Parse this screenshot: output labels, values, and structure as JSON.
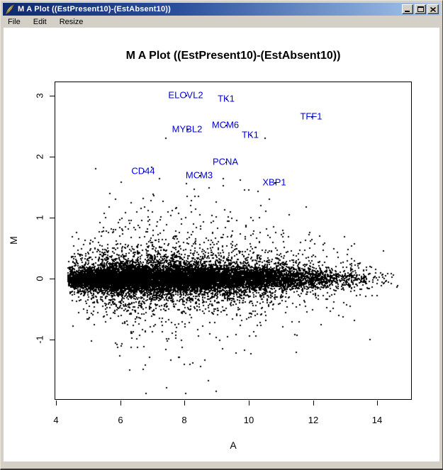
{
  "window": {
    "title": "M A Plot ((EstPresent10)-(EstAbsent10))",
    "icon": "feather-icon",
    "controls": [
      {
        "name": "minimize-button",
        "icon": "minimize-icon"
      },
      {
        "name": "maximize-button",
        "icon": "maximize-icon"
      },
      {
        "name": "close-button",
        "icon": "close-icon"
      }
    ]
  },
  "menu": {
    "items": [
      {
        "label": "File"
      },
      {
        "label": "Edit"
      },
      {
        "label": "Resize"
      }
    ]
  },
  "chart_data": {
    "type": "scatter",
    "title": "M A Plot ((EstPresent10)-(EstAbsent10))",
    "xlabel": "A",
    "ylabel": "M",
    "xlim": [
      3.95,
      15.08
    ],
    "ylim": [
      -1.99,
      3.23
    ],
    "x_ticks": [
      4,
      6,
      8,
      10,
      12,
      14
    ],
    "y_ticks": [
      -1,
      0,
      1,
      2,
      3
    ],
    "grid": false,
    "point_color": "#000000",
    "gene_label_color": "#0000dd",
    "labeled_points": [
      {
        "label": "ELOVL2",
        "a": 8.04,
        "m": 3.01
      },
      {
        "label": "TK1",
        "a": 9.3,
        "m": 2.95
      },
      {
        "label": "TFF1",
        "a": 11.95,
        "m": 2.66
      },
      {
        "label": "MCM6",
        "a": 9.28,
        "m": 2.52
      },
      {
        "label": "MYBL2",
        "a": 8.08,
        "m": 2.45
      },
      {
        "label": "TK1",
        "a": 10.05,
        "m": 2.36
      },
      {
        "label": "PCNA",
        "a": 9.27,
        "m": 1.92
      },
      {
        "label": "CD44",
        "a": 6.72,
        "m": 1.77
      },
      {
        "label": "MCM3",
        "a": 8.46,
        "m": 1.7
      },
      {
        "label": "XBP1",
        "a": 10.8,
        "m": 1.58
      }
    ],
    "point_cloud": {
      "description": "dense microarray MA cloud centered at M=0, A from ~4.4 to ~15",
      "n": 14000,
      "seed": 1337,
      "a_min": 4.35,
      "a_span": 10.65,
      "shape_a": 1.35,
      "shape_b": 3.2,
      "m_components": [
        {
          "p": 0.6,
          "sd": 0.095
        },
        {
          "p": 0.25,
          "sd": 0.2
        },
        {
          "p": 0.11,
          "sd": 0.38
        },
        {
          "p": 0.04,
          "sd": 0.72
        }
      ],
      "m_clamp": [
        -1.88,
        2.3
      ],
      "positive_skew": 0.57
    }
  }
}
